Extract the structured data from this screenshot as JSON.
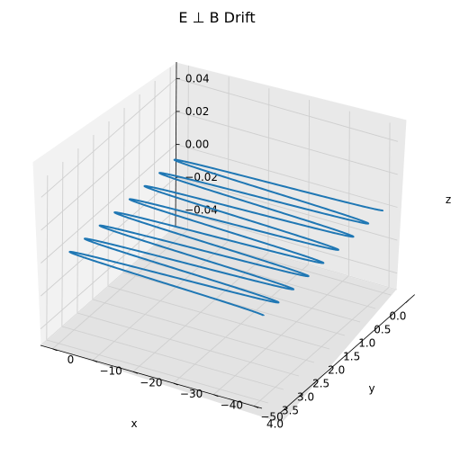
{
  "chart_data": {
    "type": "line",
    "projection": "3d",
    "title": "E ⊥ B Drift",
    "xlabel": "x",
    "ylabel": "y",
    "zlabel": "z",
    "xlim": [
      -0.2,
      4.2
    ],
    "ylim": [
      -52,
      3
    ],
    "zlim": [
      -0.05,
      0.05
    ],
    "x_ticks": [
      "0.0",
      "0.5",
      "1.0",
      "1.5",
      "2.0",
      "2.5",
      "3.0",
      "3.5",
      "4.0"
    ],
    "y_ticks": [
      "0",
      "−10",
      "−20",
      "−30",
      "−40",
      "−50"
    ],
    "z_ticks": [
      "0.04",
      "0.02",
      "0.00",
      "−0.02",
      "−0.04"
    ],
    "grid": true,
    "series": [
      {
        "color": "#1f77b4",
        "description_points": {
          "loops": 8,
          "x_range": [
            0.0,
            4.0
          ],
          "y_range": [
            -50,
            0
          ],
          "z": 0.0,
          "start": {
            "x": 0.0,
            "y": -50.0
          },
          "end": {
            "x": 3.9,
            "y": 0.0
          }
        }
      }
    ]
  }
}
